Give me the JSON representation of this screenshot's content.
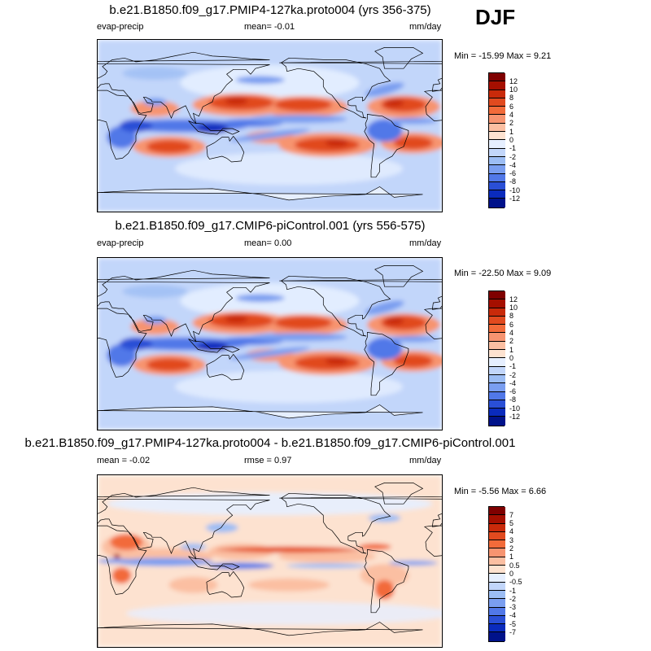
{
  "season": "DJF",
  "chart_data": [
    {
      "type": "heatmap",
      "title": "b.e21.B1850.f09_g17.PMIP4-127ka.proto004 (yrs 356-375)",
      "left_label": "evap-precip",
      "center_label": "mean=  -0.01",
      "right_label": "mm/day",
      "min_max": "Min = -15.99 Max =   9.21",
      "min": -15.99,
      "max": 9.21,
      "mean": -0.01,
      "levels": [
        "12",
        "10",
        "8",
        "6",
        "4",
        "2",
        "1",
        "0",
        "-1",
        "-2",
        "-4",
        "-6",
        "-8",
        "-10",
        "-12"
      ],
      "colors": [
        "#7f0000",
        "#a50f00",
        "#c92a0a",
        "#e14a1f",
        "#f26b3a",
        "#f79470",
        "#fbbfa2",
        "#fde2d0",
        "#e6efff",
        "#c2d6fa",
        "#9cbdf4",
        "#7a9ef0",
        "#5178e8",
        "#2a4fd6",
        "#0a2bbd",
        "#00128a"
      ],
      "pattern": "model"
    },
    {
      "type": "heatmap",
      "title": "b.e21.B1850.f09_g17.CMIP6-piControl.001 (yrs 556-575)",
      "left_label": "evap-precip",
      "center_label": "mean=   0.00",
      "right_label": "mm/day",
      "min_max": "Min = -22.50 Max =   9.09",
      "min": -22.5,
      "max": 9.09,
      "mean": 0.0,
      "levels": [
        "12",
        "10",
        "8",
        "6",
        "4",
        "2",
        "1",
        "0",
        "-1",
        "-2",
        "-4",
        "-6",
        "-8",
        "-10",
        "-12"
      ],
      "colors": [
        "#7f0000",
        "#a50f00",
        "#c92a0a",
        "#e14a1f",
        "#f26b3a",
        "#f79470",
        "#fbbfa2",
        "#fde2d0",
        "#e6efff",
        "#c2d6fa",
        "#9cbdf4",
        "#7a9ef0",
        "#5178e8",
        "#2a4fd6",
        "#0a2bbd",
        "#00128a"
      ],
      "pattern": "model"
    },
    {
      "type": "heatmap",
      "title": "b.e21.B1850.f09_g17.PMIP4-127ka.proto004 - b.e21.B1850.f09_g17.CMIP6-piControl.001",
      "left_label": "mean =  -0.02",
      "center_label": "rmse =   0.97",
      "right_label": "mm/day",
      "min_max": "Min =  -5.56 Max =   6.66",
      "min": -5.56,
      "max": 6.66,
      "mean": -0.02,
      "rmse": 0.97,
      "levels": [
        "7",
        "5",
        "4",
        "3",
        "2",
        "1",
        "0.5",
        "0",
        "-0.5",
        "-1",
        "-2",
        "-3",
        "-4",
        "-5",
        "-7"
      ],
      "colors": [
        "#7f0000",
        "#a50f00",
        "#c92a0a",
        "#e14a1f",
        "#f26b3a",
        "#f79470",
        "#fbbfa2",
        "#fde2d0",
        "#e6efff",
        "#c2d6fa",
        "#9cbdf4",
        "#7a9ef0",
        "#5178e8",
        "#2a4fd6",
        "#0a2bbd",
        "#00128a"
      ],
      "pattern": "diff"
    }
  ]
}
